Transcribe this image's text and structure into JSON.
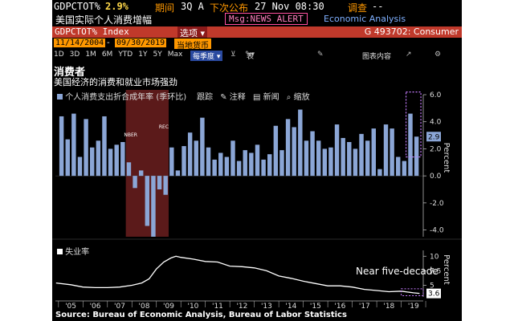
{
  "header": {
    "ticker": "GDPCTOT%",
    "value": "2.9%",
    "period_label": "期间",
    "period": "3Q A",
    "next_release_label": "下次公布",
    "next_release": "27 Nov 08:30",
    "survey_label": "调查",
    "survey": "--",
    "subtitle": "美国实际个人消费增幅",
    "alert": "Msg:NEWS ALERT",
    "source_partial": "Economic Analysis"
  },
  "toolbar": {
    "index_label": "GDPCTOT% Index",
    "options_label": "选项",
    "right_label": "G 493702: Consumer"
  },
  "date_bar": {
    "start_date": "11/14/2004",
    "end_date": "09/30/2019",
    "currency": "当地货币"
  },
  "periods": [
    "1D",
    "3D",
    "1M",
    "6M",
    "YTD",
    "1Y",
    "5Y",
    "Max"
  ],
  "frequency": "每季度",
  "controls": {
    "table_label": "表",
    "chart_content_label": "图表内容"
  },
  "chart_title": "消费者",
  "chart_subtitle": "美国经济的消费和就业市场强劲",
  "upper_legend": {
    "series_label": "个人消费支出折合成年率 (季环比)",
    "track_label": "跟踪",
    "annotate_label": "注释",
    "news_label": "新闻",
    "zoom_label": "缩放"
  },
  "lower_legend": {
    "series_label": "失业率"
  },
  "recession_labels": [
    "NBER",
    "REC"
  ],
  "annotation": "Near five-decade",
  "axis_title_upper": "Percent",
  "axis_title_lower": "Percent",
  "source": "Source: Bureau of Economic Analysis, Bureau of Labor Statistics",
  "colors": {
    "bar": "#8ba6d6",
    "recession": "#6b1e1e",
    "line": "#ffffff",
    "accent": "#ff9800",
    "highlight": "#c77dff"
  },
  "chart_data": [
    {
      "type": "bar",
      "series": [
        {
          "name": "个人消费支出折合成年率 (季环比)",
          "x": [
            "2005Q1",
            "2005Q2",
            "2005Q3",
            "2005Q4",
            "2006Q1",
            "2006Q2",
            "2006Q3",
            "2006Q4",
            "2007Q1",
            "2007Q2",
            "2007Q3",
            "2007Q4",
            "2008Q1",
            "2008Q2",
            "2008Q3",
            "2008Q4",
            "2009Q1",
            "2009Q2",
            "2009Q3",
            "2009Q4",
            "2010Q1",
            "2010Q2",
            "2010Q3",
            "2010Q4",
            "2011Q1",
            "2011Q2",
            "2011Q3",
            "2011Q4",
            "2012Q1",
            "2012Q2",
            "2012Q3",
            "2012Q4",
            "2013Q1",
            "2013Q2",
            "2013Q3",
            "2013Q4",
            "2014Q1",
            "2014Q2",
            "2014Q3",
            "2014Q4",
            "2015Q1",
            "2015Q2",
            "2015Q3",
            "2015Q4",
            "2016Q1",
            "2016Q2",
            "2016Q3",
            "2016Q4",
            "2017Q1",
            "2017Q2",
            "2017Q3",
            "2017Q4",
            "2018Q1",
            "2018Q2",
            "2018Q3",
            "2018Q4",
            "2019Q1",
            "2019Q2",
            "2019Q3"
          ],
          "values": [
            4.4,
            2.7,
            4.6,
            1.4,
            4.2,
            2.1,
            2.6,
            4.4,
            2.0,
            2.3,
            2.5,
            1.0,
            -0.9,
            0.4,
            -3.7,
            -4.5,
            -1.0,
            -1.4,
            2.1,
            0.4,
            2.2,
            3.2,
            2.6,
            4.3,
            2.1,
            1.2,
            1.7,
            1.4,
            2.6,
            1.1,
            1.9,
            1.7,
            2.3,
            1.2,
            1.6,
            3.7,
            1.9,
            4.2,
            3.6,
            4.9,
            2.6,
            3.3,
            2.6,
            2.0,
            2.1,
            3.8,
            2.8,
            2.5,
            2.0,
            3.1,
            2.6,
            3.5,
            0.5,
            3.8,
            3.5,
            1.4,
            1.1,
            4.6,
            2.9
          ]
        }
      ],
      "ylim": [
        -4.5,
        6.0
      ],
      "yticks": [
        6.0,
        4.0,
        2.0,
        0.0,
        -2.0,
        -4.0
      ],
      "last_value_label": "2.9",
      "recession": [
        "2007Q4",
        "2009Q2"
      ]
    },
    {
      "type": "line",
      "series": [
        {
          "name": "失业率",
          "x": [
            2004.9,
            2005.5,
            2006.0,
            2006.5,
            2007.0,
            2007.5,
            2008.0,
            2008.4,
            2008.7,
            2009.0,
            2009.3,
            2009.6,
            2009.8,
            2010.0,
            2010.5,
            2011.0,
            2011.5,
            2012.0,
            2012.5,
            2013.0,
            2013.5,
            2014.0,
            2014.5,
            2015.0,
            2015.5,
            2016.0,
            2016.5,
            2017.0,
            2017.5,
            2018.0,
            2018.5,
            2019.0,
            2019.5,
            2019.75
          ],
          "values": [
            5.4,
            5.1,
            4.7,
            4.6,
            4.6,
            4.7,
            5.0,
            5.4,
            6.1,
            7.8,
            9.0,
            9.7,
            10.0,
            9.8,
            9.5,
            9.1,
            9.0,
            8.3,
            8.2,
            8.0,
            7.5,
            6.6,
            6.2,
            5.7,
            5.3,
            4.9,
            4.9,
            4.7,
            4.3,
            4.1,
            3.9,
            4.0,
            3.7,
            3.6
          ]
        }
      ],
      "ylim": [
        3.0,
        11.0
      ],
      "yticks": [
        10,
        7.5,
        5
      ],
      "last_value_label": "3.6"
    }
  ],
  "x_axis_labels": [
    "'05",
    "'06",
    "'07",
    "'08",
    "'09",
    "'10",
    "'11",
    "'12",
    "'13",
    "'14",
    "'15",
    "'16",
    "'17",
    "'18",
    "'19"
  ]
}
